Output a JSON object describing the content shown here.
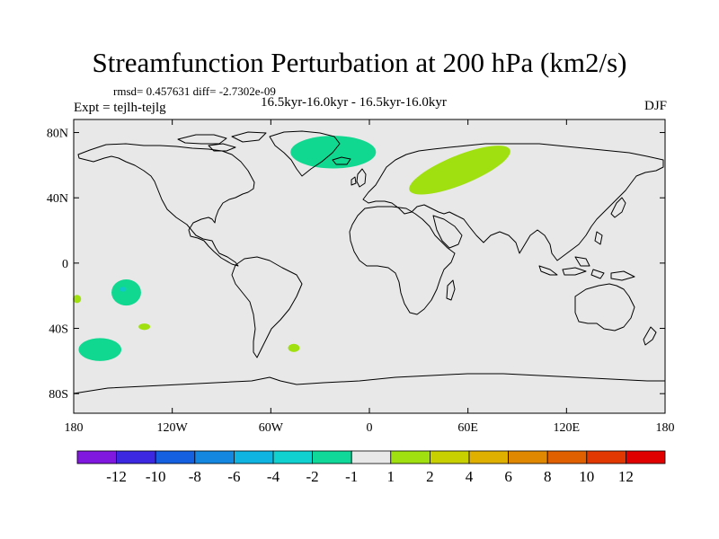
{
  "figure": {
    "title": "Streamfunction Perturbation at 200 hPa (km2/s)",
    "stats": "rmsd= 0.457631 diff= -2.7302e-09",
    "subtitle": "16.5kyr-16.0kyr - 16.5kyr-16.0kyr",
    "experiment": "Expt = tejlh-tejlg",
    "season": "DJF"
  },
  "map": {
    "background_color": "#e8e8e8",
    "x_ticks": [
      {
        "lon": -180,
        "label": "180"
      },
      {
        "lon": -120,
        "label": "120W"
      },
      {
        "lon": -60,
        "label": "60W"
      },
      {
        "lon": 0,
        "label": "0"
      },
      {
        "lon": 60,
        "label": "60E"
      },
      {
        "lon": 120,
        "label": "120E"
      },
      {
        "lon": 180,
        "label": "180"
      }
    ],
    "y_ticks": [
      {
        "lat": 80,
        "label": "80N"
      },
      {
        "lat": 40,
        "label": "40N"
      },
      {
        "lat": 0,
        "label": "0"
      },
      {
        "lat": -40,
        "label": "40S"
      },
      {
        "lat": -80,
        "label": "80S"
      }
    ],
    "anomalies": [
      {
        "name": "anomaly-north-atlantic",
        "lon": -22,
        "lat": 68,
        "rlon": 26,
        "rlat": 10,
        "level": "-2 to -1",
        "color": "#10d890"
      },
      {
        "name": "anomaly-eurasia",
        "lon": 55,
        "lat": 57,
        "rlon": 33,
        "rlat": 9,
        "rotate": -22,
        "level": "1 to 2",
        "color": "#a0e010"
      },
      {
        "name": "anomaly-south-pacific-tropical",
        "lon": -148,
        "lat": -18,
        "rlon": 9,
        "rlat": 8,
        "level": "-2 to -1",
        "color": "#10d890"
      },
      {
        "name": "anomaly-south-pacific-tropical-core",
        "lon": -150,
        "lat": -16,
        "rlon": 2,
        "rlat": 1.5,
        "level": "-4 to -2",
        "color": "#10c8c8"
      },
      {
        "name": "anomaly-dateline-south",
        "lon": -178,
        "lat": -22,
        "rlon": 2.5,
        "rlat": 2.5,
        "level": "1 to 2",
        "color": "#a0e010"
      },
      {
        "name": "anomaly-south-pacific-midlat",
        "lon": -137,
        "lat": -39,
        "rlon": 3.5,
        "rlat": 2,
        "level": "1 to 2",
        "color": "#a0e010"
      },
      {
        "name": "anomaly-south-pacific-southern",
        "lon": -164,
        "lat": -53,
        "rlon": 13,
        "rlat": 7,
        "level": "-2 to -1",
        "color": "#10d890"
      },
      {
        "name": "anomaly-south-atlantic",
        "lon": -46,
        "lat": -52,
        "rlon": 3.5,
        "rlat": 2.5,
        "level": "1 to 2",
        "color": "#a0e010"
      }
    ]
  },
  "colorbar": {
    "colors": [
      "#8018e0",
      "#3c28e0",
      "#1460e0",
      "#1488e0",
      "#10b4e0",
      "#10d0d0",
      "#10d898",
      "#e8e8e8",
      "#a0e010",
      "#c8d000",
      "#e0b000",
      "#e08800",
      "#e06000",
      "#e03800",
      "#e00000"
    ],
    "labels": [
      "-12",
      "-10",
      "-8",
      "-6",
      "-4",
      "-2",
      "-1",
      "1",
      "2",
      "4",
      "6",
      "8",
      "10",
      "12"
    ]
  }
}
